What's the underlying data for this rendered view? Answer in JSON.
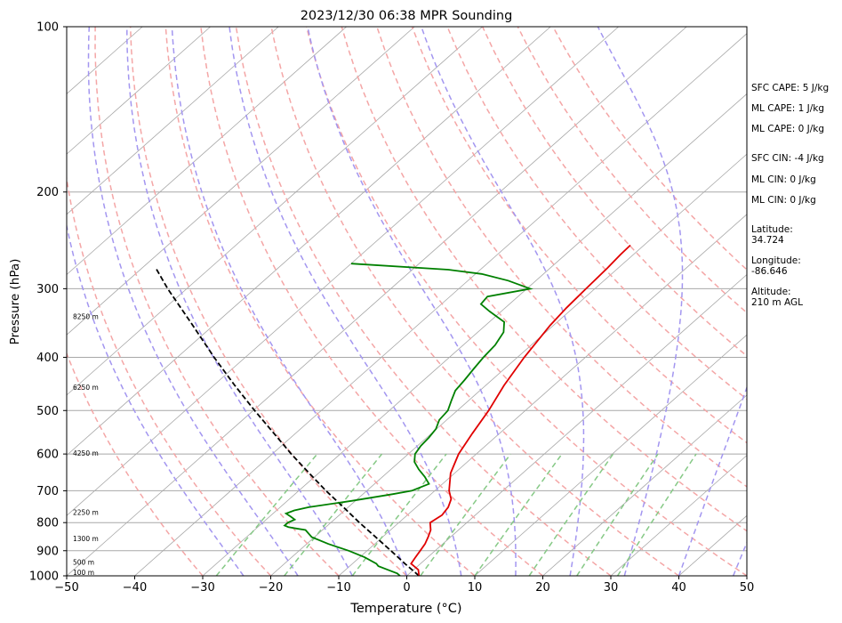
{
  "chart_data": {
    "type": "skew-t",
    "title": "2023/12/30 06:38 MPR Sounding",
    "xlabel": "Temperature (°C)",
    "ylabel": "Pressure (hPa)",
    "xlim": [
      -50,
      50
    ],
    "ylim": [
      1000,
      100
    ],
    "y_scale": "log",
    "x_ticks": [
      "−50",
      "−40",
      "−30",
      "−20",
      "−10",
      "0",
      "10",
      "20",
      "30",
      "40",
      "50"
    ],
    "y_ticks": [
      "100",
      "200",
      "300",
      "400",
      "500",
      "600",
      "700",
      "800",
      "900",
      "1000"
    ],
    "isobars": [
      200,
      300,
      400,
      500,
      600,
      700,
      800,
      900
    ],
    "isotherms": [
      -130,
      -120,
      -110,
      -100,
      -90,
      -80,
      -70,
      -60,
      -50,
      -40,
      -30,
      -20,
      -10,
      0,
      10,
      20,
      30,
      40,
      50
    ],
    "dry_adiabats_theta_C": [
      -30,
      -20,
      -10,
      0,
      10,
      20,
      30,
      40,
      50,
      60,
      70,
      80,
      90,
      100,
      110,
      120
    ],
    "moist_adiabats_start_C": [
      -24,
      -16,
      -8,
      0,
      8,
      16,
      24,
      32,
      40,
      48,
      56
    ],
    "mixing_ratio_start_C": [
      -28,
      -18,
      -8,
      2,
      10,
      18,
      25,
      31
    ],
    "temperature": {
      "color": "#e00000",
      "points": [
        [
          1000,
          1.8
        ],
        [
          975,
          0.7
        ],
        [
          950,
          -1.4
        ],
        [
          925,
          -1.8
        ],
        [
          900,
          -2.2
        ],
        [
          875,
          -2.6
        ],
        [
          850,
          -3.3
        ],
        [
          825,
          -4.1
        ],
        [
          800,
          -5.4
        ],
        [
          775,
          -4.9
        ],
        [
          750,
          -5.3
        ],
        [
          725,
          -6.2
        ],
        [
          700,
          -7.9
        ],
        [
          650,
          -10.6
        ],
        [
          600,
          -12.6
        ],
        [
          550,
          -14.0
        ],
        [
          500,
          -15.4
        ],
        [
          450,
          -17.3
        ],
        [
          400,
          -19.0
        ],
        [
          350,
          -20.5
        ],
        [
          325,
          -21.0
        ],
        [
          300,
          -21.3
        ],
        [
          275,
          -21.6
        ],
        [
          260,
          -21.9
        ],
        [
          250,
          -22.0
        ]
      ]
    },
    "dewpoint": {
      "color": "#008000",
      "points": [
        [
          1000,
          -1.0
        ],
        [
          990,
          -1.8
        ],
        [
          975,
          -3.8
        ],
        [
          960,
          -5.8
        ],
        [
          950,
          -6.5
        ],
        [
          925,
          -9.3
        ],
        [
          900,
          -12.7
        ],
        [
          875,
          -16.8
        ],
        [
          850,
          -20.4
        ],
        [
          825,
          -22.5
        ],
        [
          820,
          -24.1
        ],
        [
          815,
          -25.5
        ],
        [
          810,
          -26.3
        ],
        [
          800,
          -26.3
        ],
        [
          790,
          -25.8
        ],
        [
          780,
          -26.9
        ],
        [
          770,
          -28.1
        ],
        [
          760,
          -27.4
        ],
        [
          750,
          -25.8
        ],
        [
          730,
          -20.5
        ],
        [
          710,
          -15.6
        ],
        [
          700,
          -13.4
        ],
        [
          680,
          -12.0
        ],
        [
          660,
          -13.8
        ],
        [
          640,
          -15.9
        ],
        [
          620,
          -17.8
        ],
        [
          600,
          -19.0
        ],
        [
          580,
          -19.5
        ],
        [
          560,
          -19.7
        ],
        [
          540,
          -20.1
        ],
        [
          520,
          -21.1
        ],
        [
          500,
          -21.4
        ],
        [
          480,
          -22.5
        ],
        [
          460,
          -23.6
        ],
        [
          440,
          -24.0
        ],
        [
          420,
          -24.5
        ],
        [
          400,
          -25.0
        ],
        [
          380,
          -25.3
        ],
        [
          360,
          -26.2
        ],
        [
          345,
          -27.8
        ],
        [
          330,
          -31.7
        ],
        [
          320,
          -34.2
        ],
        [
          310,
          -34.5
        ],
        [
          300,
          -29.5
        ],
        [
          290,
          -34.1
        ],
        [
          282,
          -39.1
        ],
        [
          277,
          -44.7
        ],
        [
          270,
          -60.0
        ]
      ]
    },
    "parcel": {
      "color": "#000000",
      "points": [
        [
          1000,
          1.8
        ],
        [
          950,
          -2.3
        ],
        [
          900,
          -6.5
        ],
        [
          850,
          -11.0
        ],
        [
          800,
          -15.8
        ],
        [
          750,
          -20.7
        ],
        [
          700,
          -26.0
        ],
        [
          650,
          -31.4
        ],
        [
          600,
          -37.2
        ],
        [
          550,
          -43.2
        ],
        [
          500,
          -49.8
        ],
        [
          450,
          -56.9
        ],
        [
          400,
          -64.6
        ],
        [
          350,
          -73.0
        ],
        [
          300,
          -82.8
        ],
        [
          275,
          -88.0
        ]
      ]
    },
    "height_labels": [
      "100 m",
      "500 m",
      "1300 m",
      "2250 m",
      "4250 m",
      "6250 m",
      "8250 m"
    ],
    "height_label_pressures": [
      1000,
      958,
      867,
      777,
      606,
      460,
      342
    ]
  },
  "indices": {
    "sfc_cape": "SFC CAPE: 5 J/kg",
    "ml_cape_1": "ML CAPE: 1 J/kg",
    "ml_cape_2": "ML CAPE: 0 J/kg",
    "sfc_cin": "SFC CIN: -4 J/kg",
    "ml_cin_1": "ML CIN: 0 J/kg",
    "ml_cin_2": "ML CIN: 0 J/kg"
  },
  "location": {
    "latitude_label": "Latitude:",
    "latitude": "34.724",
    "longitude_label": "Longitude:",
    "longitude": "-86.646",
    "altitude_label": "Altitude:",
    "altitude": "210 m AGL"
  },
  "colors": {
    "temperature": "#e00000",
    "dewpoint": "#008000",
    "parcel": "#000000",
    "isotherm": "#a8a8a8",
    "dry_adiabat": "#f4a6a6",
    "moist_adiabat": "#a396f0",
    "mixing_ratio": "#86c986"
  }
}
